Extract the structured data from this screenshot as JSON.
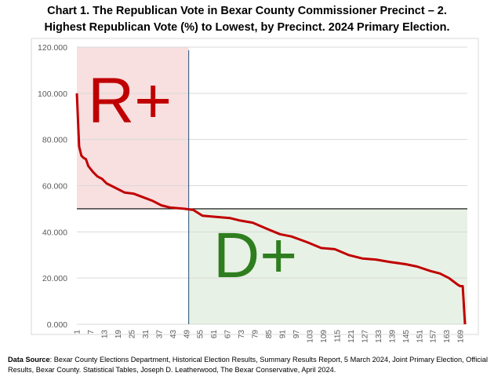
{
  "chart_data": {
    "type": "line",
    "title_line1": "Chart 1. The Republican Vote in Bexar County Commissioner Precinct – 2.",
    "title_line2": "Highest Republican Vote (%) to Lowest, by Precinct. 2024 Primary Election.",
    "xlabel": "",
    "ylabel": "",
    "ylim": [
      0,
      120
    ],
    "xlim": [
      1,
      171
    ],
    "y_ticks": [
      "0.000",
      "20.000",
      "40.000",
      "60.000",
      "80.000",
      "100.000",
      "120.000"
    ],
    "y_tick_values": [
      0,
      20,
      40,
      60,
      80,
      100,
      120
    ],
    "x_ticks": [
      1,
      7,
      13,
      19,
      25,
      31,
      37,
      43,
      49,
      55,
      61,
      67,
      73,
      79,
      85,
      91,
      97,
      103,
      109,
      115,
      121,
      127,
      133,
      139,
      145,
      151,
      157,
      163,
      169
    ],
    "grid": true,
    "series": [
      {
        "color": "#c00000",
        "x": [
          1,
          2,
          3,
          4,
          5,
          6,
          8,
          10,
          12,
          14,
          16,
          19,
          22,
          26,
          30,
          34,
          38,
          42,
          48,
          52,
          56,
          62,
          68,
          72,
          78,
          85,
          90,
          95,
          102,
          108,
          114,
          120,
          126,
          132,
          138,
          145,
          150,
          156,
          160,
          164,
          168,
          169,
          170,
          171
        ],
        "y": [
          100,
          77,
          73,
          72,
          71.5,
          68.5,
          66,
          64,
          63,
          61,
          60,
          58.5,
          57,
          56.5,
          55,
          53.5,
          51.5,
          50.5,
          50,
          49.5,
          47,
          46.5,
          46,
          45,
          44,
          41,
          39,
          38,
          35.5,
          33,
          32.5,
          30,
          28.5,
          28,
          27,
          26,
          25,
          23,
          22,
          20,
          17,
          16.5,
          16.5,
          0
        ]
      }
    ],
    "reference_lines": {
      "horizontal_y": 50,
      "vertical_x": 50
    },
    "annotations": {
      "r_label": "R+",
      "r_color": "#c00000",
      "r_fill": "#f8dfe0",
      "d_label": "D+",
      "d_color": "#2e7d1e",
      "d_fill": "#e8f1e5"
    }
  },
  "source": {
    "label": "Data Source",
    "text": ": Bexar County Elections Department, Historical Election Results, Summary Results Report, 5 March 2024, Joint Primary Election, Official Results, Bexar County.  Statistical Tables, Joseph D. Leatherwood, The Bexar Conservative, April 2024."
  }
}
